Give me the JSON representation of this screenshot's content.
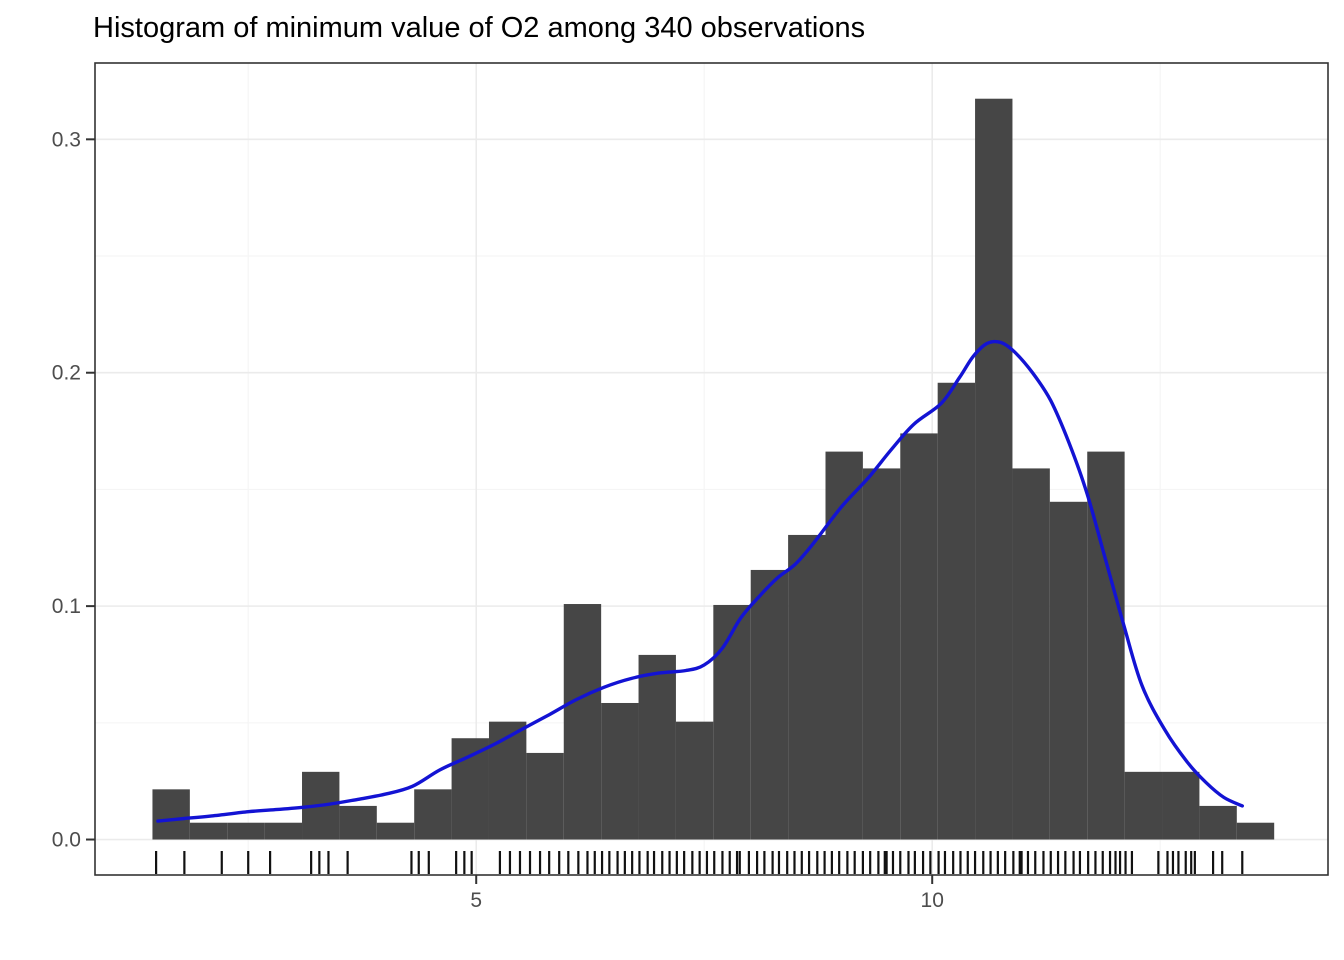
{
  "title": "Histogram of minimum value of O2 among 340 observations",
  "colors": {
    "background": "#ffffff",
    "bar_fill": "#464646",
    "density_curve": "#1313d3",
    "grid_major": "#ebebeb",
    "grid_minor": "#f5f5f5",
    "panel_border": "#333333",
    "tick_mark": "#333333",
    "axis_text": "#4d4d4d",
    "title_text": "#000000",
    "rug": "#111111"
  },
  "chart_data": {
    "type": "bar",
    "subtype": "histogram_with_density_curve_and_rug",
    "title": "Histogram of minimum value of O2 among 340 observations",
    "xlabel": "",
    "ylabel": "",
    "legend": "none",
    "grid": "major+minor",
    "total_observations": 340,
    "x_axis": {
      "tick_values": [
        5,
        10
      ],
      "tick_labels": [
        "5",
        "10"
      ],
      "minor_tick_values": [
        2.5,
        7.5,
        12.5
      ],
      "range": [
        0.82,
        14.34
      ]
    },
    "y_axis": {
      "tick_values": [
        0,
        0.1,
        0.2,
        0.3
      ],
      "tick_labels": [
        "0.0",
        "0.1",
        "0.2",
        "0.3"
      ],
      "minor_tick_values": [
        0.05,
        0.15,
        0.25
      ],
      "range": [
        -0.0152,
        0.3327
      ]
    },
    "histogram": {
      "bin_width": 0.41,
      "bin_starts": [
        1.45,
        1.86,
        2.27,
        2.68,
        3.09,
        3.5,
        3.91,
        4.32,
        4.73,
        5.14,
        5.55,
        5.96,
        6.37,
        6.78,
        7.19,
        7.6,
        8.01,
        8.42,
        8.83,
        9.24,
        9.65,
        10.06,
        10.47,
        10.88,
        11.29,
        11.7,
        12.11,
        12.52,
        12.93,
        13.34
      ],
      "densities": [
        0.0215,
        0.0072,
        0.0072,
        0.0072,
        0.029,
        0.0144,
        0.0072,
        0.0215,
        0.0434,
        0.0505,
        0.0371,
        0.1009,
        0.0585,
        0.0791,
        0.0505,
        0.1005,
        0.1155,
        0.1305,
        0.1662,
        0.159,
        0.174,
        0.1957,
        0.3174,
        0.159,
        0.1447,
        0.1662,
        0.029,
        0.029,
        0.0144,
        0.0072
      ],
      "estimated_counts": [
        3,
        1,
        1,
        1,
        4,
        2,
        1,
        3,
        6,
        7,
        5,
        14,
        8,
        11,
        7,
        14,
        16,
        18,
        23,
        22,
        24,
        28,
        45,
        22,
        20,
        23,
        4,
        4,
        2,
        1
      ]
    },
    "density_curve": {
      "points": [
        [
          1.51,
          0.0079
        ],
        [
          1.8,
          0.009
        ],
        [
          2.1,
          0.0101
        ],
        [
          2.5,
          0.0119
        ],
        [
          2.8,
          0.0128
        ],
        [
          3.1,
          0.0138
        ],
        [
          3.4,
          0.0152
        ],
        [
          3.7,
          0.0172
        ],
        [
          4.0,
          0.0194
        ],
        [
          4.3,
          0.0228
        ],
        [
          4.6,
          0.0298
        ],
        [
          4.9,
          0.0352
        ],
        [
          5.2,
          0.0408
        ],
        [
          5.5,
          0.0472
        ],
        [
          5.8,
          0.0535
        ],
        [
          6.1,
          0.06
        ],
        [
          6.4,
          0.0652
        ],
        [
          6.7,
          0.069
        ],
        [
          7.0,
          0.0713
        ],
        [
          7.3,
          0.0724
        ],
        [
          7.5,
          0.0748
        ],
        [
          7.7,
          0.082
        ],
        [
          7.9,
          0.0949
        ],
        [
          8.1,
          0.104
        ],
        [
          8.3,
          0.112
        ],
        [
          8.5,
          0.118
        ],
        [
          8.7,
          0.127
        ],
        [
          9.0,
          0.1423
        ],
        [
          9.3,
          0.155
        ],
        [
          9.55,
          0.167
        ],
        [
          9.8,
          0.178
        ],
        [
          10.1,
          0.1869
        ],
        [
          10.3,
          0.198
        ],
        [
          10.45,
          0.207
        ],
        [
          10.6,
          0.2125
        ],
        [
          10.75,
          0.213
        ],
        [
          10.9,
          0.209
        ],
        [
          11.1,
          0.2
        ],
        [
          11.3,
          0.188
        ],
        [
          11.5,
          0.17
        ],
        [
          11.7,
          0.148
        ],
        [
          11.9,
          0.12
        ],
        [
          12.1,
          0.092
        ],
        [
          12.3,
          0.066
        ],
        [
          12.55,
          0.047
        ],
        [
          12.8,
          0.033
        ],
        [
          13.0,
          0.0245
        ],
        [
          13.2,
          0.018
        ],
        [
          13.4,
          0.0144
        ]
      ]
    },
    "rug": {
      "values": [
        1.49,
        1.8,
        2.21,
        2.5,
        2.74,
        3.19,
        3.28,
        3.38,
        3.59,
        4.29,
        4.37,
        4.48,
        4.78,
        4.87,
        4.95,
        5.26,
        5.37,
        5.48,
        5.59,
        5.7,
        5.8,
        5.91,
        6.01,
        6.12,
        6.22,
        6.3,
        6.38,
        6.46,
        6.55,
        6.63,
        6.71,
        6.79,
        6.88,
        6.95,
        7.04,
        7.12,
        7.2,
        7.28,
        7.37,
        7.45,
        7.53,
        7.61,
        7.7,
        7.78,
        7.86,
        7.89,
        7.99,
        8.08,
        8.16,
        8.25,
        8.32,
        8.41,
        8.49,
        8.57,
        8.65,
        8.74,
        8.82,
        8.9,
        8.98,
        9.07,
        9.15,
        9.24,
        9.32,
        9.41,
        9.48,
        9.5,
        9.57,
        9.65,
        9.74,
        9.81,
        9.9,
        9.98,
        10.07,
        10.14,
        10.23,
        10.31,
        10.39,
        10.47,
        10.56,
        10.64,
        10.72,
        10.8,
        10.89,
        10.96,
        10.98,
        11.05,
        11.13,
        11.22,
        11.3,
        11.38,
        11.46,
        11.55,
        11.62,
        11.71,
        11.79,
        11.87,
        11.95,
        12.01,
        12.06,
        12.12,
        12.19,
        12.48,
        12.58,
        12.64,
        12.7,
        12.78,
        12.84,
        12.88,
        13.08,
        13.18,
        13.4
      ]
    }
  }
}
